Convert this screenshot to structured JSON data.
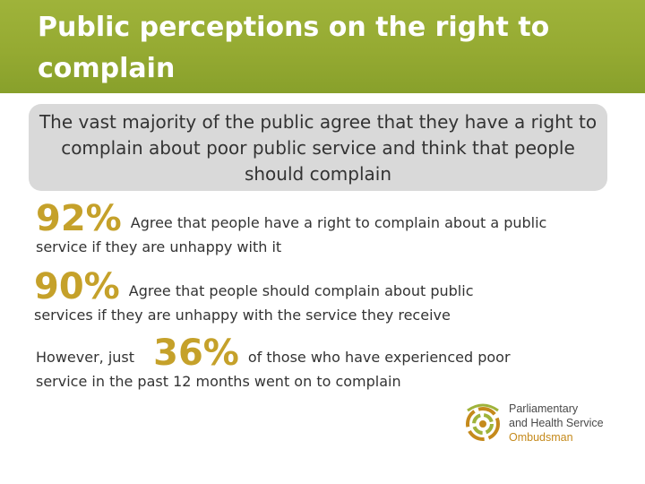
{
  "slide": {
    "title": "Public perceptions on the right to complain",
    "callout": "The vast majority of the public agree that they have a right to complain about poor public service and think that people should complain",
    "stats": [
      {
        "value": "92%",
        "text": "Agree that people have a right to complain about a public service if they are unhappy with it"
      },
      {
        "value": "90%",
        "text": "Agree that people should complain about public services if they are unhappy with the service they receive"
      }
    ],
    "however": {
      "lead": "However, just",
      "value": "36%",
      "text": "of those who have experienced poor service in the past 12 months went on to complain"
    },
    "logo": {
      "line1": "Parliamentary",
      "line2": "and Health Service",
      "line3": "Ombudsman"
    }
  },
  "colors": {
    "header": "#95aa32",
    "accent": "#c5a12a",
    "callout_bg": "#d9d9d9"
  }
}
